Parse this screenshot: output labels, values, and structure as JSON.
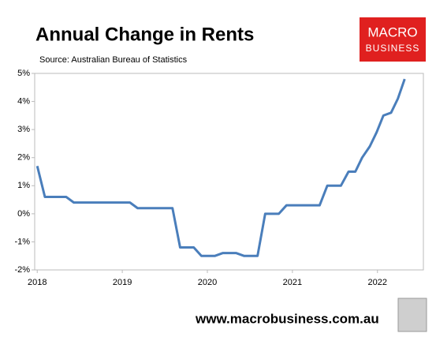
{
  "chart_data": {
    "type": "line",
    "title": "Annual Change in Rents",
    "subtitle": "Source: Australian Bureau of Statistics",
    "x": [
      2018.0,
      2018.09,
      2018.34,
      2018.43,
      2019.09,
      2019.18,
      2019.59,
      2019.68,
      2019.84,
      2019.93,
      2020.09,
      2020.18,
      2020.34,
      2020.43,
      2020.59,
      2020.68,
      2020.84,
      2020.93,
      2021.32,
      2021.41,
      2021.57,
      2021.66,
      2021.74,
      2021.82,
      2021.91,
      2021.99,
      2022.07,
      2022.16,
      2022.24,
      2022.32
    ],
    "series": [
      {
        "color": "#4a7ebb",
        "values": [
          1.7,
          0.6,
          0.6,
          0.4,
          0.4,
          0.2,
          0.2,
          -1.2,
          -1.2,
          -1.5,
          -1.5,
          -1.4,
          -1.4,
          -1.5,
          -1.5,
          0,
          0,
          0.3,
          0.3,
          1.0,
          1.0,
          1.5,
          1.5,
          2.0,
          2.4,
          2.9,
          3.5,
          3.6,
          4.1,
          4.8
        ]
      }
    ],
    "xlim": [
      2017.97,
      2022.54
    ],
    "xticks": [
      2018,
      2019,
      2020,
      2021,
      2022
    ],
    "ylim": [
      -2,
      5
    ],
    "yticks": [
      {
        "value": -2,
        "label": "-2%"
      },
      {
        "value": -1,
        "label": "-1%"
      },
      {
        "value": 0,
        "label": "0%"
      },
      {
        "value": 1,
        "label": "1%"
      },
      {
        "value": 2,
        "label": "2%"
      },
      {
        "value": 3,
        "label": "3%"
      },
      {
        "value": 4,
        "label": "4%"
      },
      {
        "value": 5,
        "label": "5%"
      }
    ],
    "grid": false
  },
  "logo": {
    "line1": "MACRO",
    "line2": "BUSINESS"
  },
  "footer": "www.macrobusiness.com.au"
}
